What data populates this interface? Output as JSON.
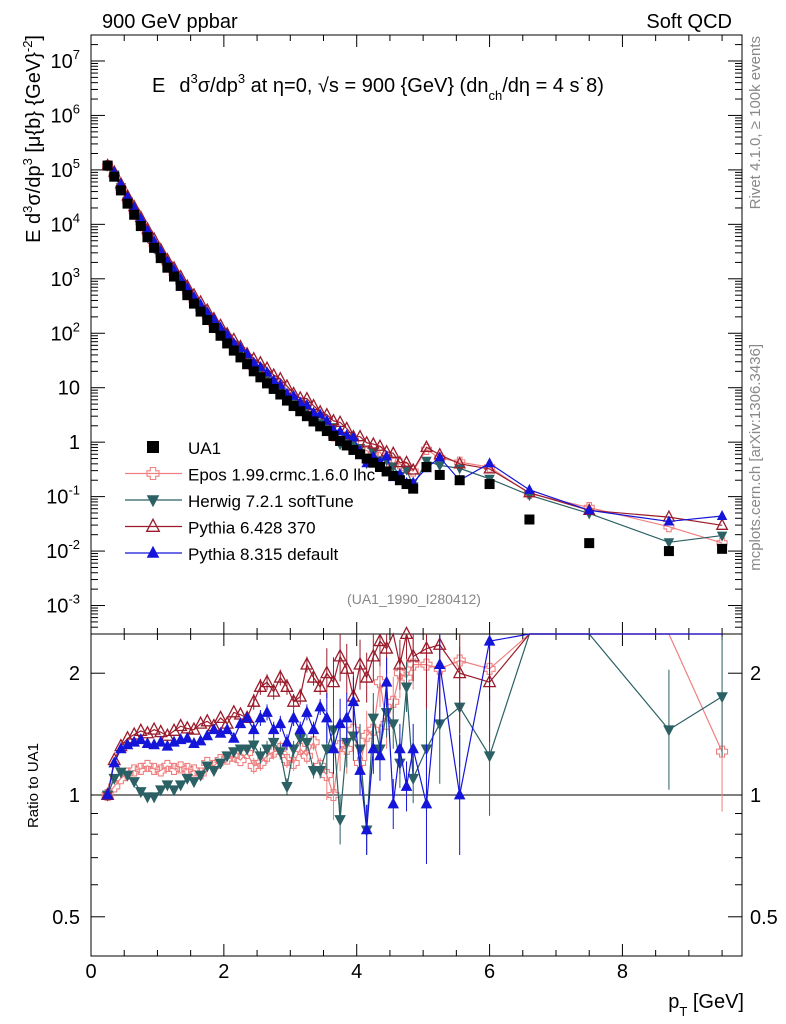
{
  "header": {
    "left": "900 GeV ppbar",
    "right": "Soft QCD"
  },
  "side": {
    "rivet": "Rivet 4.1.0, ≥ 100k events",
    "mcplots": "mcplots.cern.ch [arXiv:1306.3436]"
  },
  "chart_data": {
    "type": "scatter",
    "title_parts": {
      "E": "E",
      "d": "d",
      "sup3a": "3",
      "sigma": "σ/dp",
      "sup3b": "3",
      "at": " at η=0, √s = 900 {GeV} (dn",
      "ch": "ch",
      "deta": "/dη = 4 s",
      "dot": "˙",
      "eight": "8)"
    },
    "dataset_label": "(UA1_1990_I280412)",
    "ylabel_parts": {
      "a": "E d",
      "b": "3",
      "c": "σ/dp",
      "d": "3",
      "e": " [μ{b} {GeV}",
      "f": "-2",
      "g": "]"
    },
    "ratio_ylabel": "Ratio to UA1",
    "xlabel_parts": {
      "p": "p",
      "T": "T",
      "unit": " [GeV]"
    },
    "xlim": [
      0,
      9.8
    ],
    "ylim": [
      0.0003,
      30000000
    ],
    "ratio_ylim": [
      0.4,
      2.5
    ],
    "xticks": [
      "0",
      "2",
      "4",
      "6",
      "8"
    ],
    "xtick_values": [
      0,
      2,
      4,
      6,
      8
    ],
    "yticks": [
      {
        "v": 0.001,
        "m": "10",
        "e": "-3"
      },
      {
        "v": 0.01,
        "m": "10",
        "e": "-2"
      },
      {
        "v": 0.1,
        "m": "10",
        "e": "-1"
      },
      {
        "v": 1,
        "m": "1",
        "e": ""
      },
      {
        "v": 10,
        "m": "10",
        "e": ""
      },
      {
        "v": 100,
        "m": "10",
        "e": "2"
      },
      {
        "v": 1000,
        "m": "10",
        "e": "3"
      },
      {
        "v": 10000,
        "m": "10",
        "e": "4"
      },
      {
        "v": 100000,
        "m": "10",
        "e": "5"
      },
      {
        "v": 1000000,
        "m": "10",
        "e": "6"
      },
      {
        "v": 10000000,
        "m": "10",
        "e": "7"
      }
    ],
    "ratio_yticks": [
      {
        "v": 0.5,
        "l": "0.5"
      },
      {
        "v": 1,
        "l": "1"
      },
      {
        "v": 2,
        "l": "2"
      }
    ],
    "series": [
      {
        "name": "UA1",
        "color": "#000000",
        "marker": "square",
        "x": [
          0.25,
          0.35,
          0.45,
          0.55,
          0.65,
          0.75,
          0.85,
          0.95,
          1.05,
          1.15,
          1.25,
          1.35,
          1.45,
          1.55,
          1.65,
          1.75,
          1.85,
          1.95,
          2.05,
          2.15,
          2.25,
          2.35,
          2.45,
          2.55,
          2.65,
          2.75,
          2.85,
          2.95,
          3.05,
          3.15,
          3.25,
          3.35,
          3.45,
          3.55,
          3.65,
          3.75,
          3.85,
          3.95,
          4.05,
          4.15,
          4.25,
          4.35,
          4.45,
          4.55,
          4.65,
          4.75,
          4.85,
          5.05,
          5.25,
          5.55,
          6.0,
          6.6,
          7.5,
          8.7,
          9.5
        ],
        "y": [
          120000,
          75000,
          42000,
          24000,
          15000,
          9300,
          5800,
          3700,
          2400,
          1600,
          1100,
          740,
          500,
          350,
          250,
          175,
          125,
          90,
          65,
          48,
          36,
          27,
          20,
          15.5,
          12,
          9.5,
          7.5,
          5.8,
          4.6,
          3.7,
          3.0,
          2.4,
          1.95,
          1.6,
          1.3,
          1.05,
          0.87,
          0.72,
          0.6,
          0.5,
          0.42,
          0.35,
          0.29,
          0.24,
          0.2,
          0.17,
          0.14,
          0.35,
          0.25,
          0.2,
          0.17,
          0.038,
          0.014,
          0.01,
          0.011
        ]
      },
      {
        "name": "Epos 1.99.crmc.1.6.0 lhc",
        "color": "#f08080",
        "marker": "cross",
        "ratio_x": [
          0.25,
          0.35,
          0.45,
          0.55,
          0.65,
          0.75,
          0.85,
          0.95,
          1.05,
          1.15,
          1.25,
          1.35,
          1.45,
          1.55,
          1.65,
          1.75,
          1.85,
          1.95,
          2.05,
          2.15,
          2.25,
          2.35,
          2.45,
          2.55,
          2.65,
          2.75,
          2.85,
          2.95,
          3.05,
          3.15,
          3.25,
          3.35,
          3.45,
          3.55,
          3.65,
          3.75,
          3.85,
          3.95,
          4.05,
          4.15,
          4.25,
          4.35,
          4.45,
          4.55,
          4.65,
          4.75,
          4.85,
          5.05,
          5.25,
          5.55,
          6.0,
          6.6,
          7.5,
          8.7,
          9.5
        ],
        "ratio": [
          1.0,
          1.05,
          1.1,
          1.13,
          1.15,
          1.16,
          1.18,
          1.16,
          1.15,
          1.18,
          1.16,
          1.17,
          1.16,
          1.15,
          1.13,
          1.2,
          1.18,
          1.22,
          1.23,
          1.25,
          1.22,
          1.27,
          1.18,
          1.2,
          1.25,
          1.28,
          1.3,
          1.22,
          1.2,
          1.3,
          1.25,
          1.35,
          1.18,
          1.12,
          1.0,
          1.32,
          1.3,
          1.45,
          1.2,
          1.4,
          1.45,
          1.9,
          1.5,
          1.7,
          2.0,
          1.95,
          2.1,
          2.1,
          2.05,
          2.15,
          2.05,
          3.0,
          4.5,
          2.8,
          1.28
        ]
      },
      {
        "name": "Herwig 7.2.1 softTune",
        "color": "#2b6064",
        "marker": "tri_down",
        "ratio_x": [
          0.25,
          0.35,
          0.45,
          0.55,
          0.65,
          0.75,
          0.85,
          0.95,
          1.05,
          1.15,
          1.25,
          1.35,
          1.45,
          1.55,
          1.65,
          1.75,
          1.85,
          1.95,
          2.05,
          2.15,
          2.25,
          2.35,
          2.45,
          2.55,
          2.65,
          2.75,
          2.85,
          2.95,
          3.05,
          3.15,
          3.25,
          3.35,
          3.45,
          3.55,
          3.65,
          3.75,
          3.85,
          3.95,
          4.05,
          4.15,
          4.25,
          4.35,
          4.45,
          4.55,
          4.65,
          4.75,
          4.85,
          5.05,
          5.25,
          5.55,
          6.0,
          6.6,
          7.5,
          8.7,
          9.5
        ],
        "ratio": [
          1.0,
          1.1,
          1.14,
          1.12,
          1.08,
          1.02,
          0.99,
          0.99,
          1.03,
          1.06,
          1.03,
          1.06,
          1.1,
          1.08,
          1.12,
          1.18,
          1.15,
          1.2,
          1.25,
          1.28,
          1.3,
          1.3,
          1.33,
          1.25,
          1.3,
          1.35,
          1.28,
          1.05,
          1.3,
          1.38,
          1.35,
          1.15,
          1.15,
          1.3,
          1.45,
          0.87,
          1.35,
          1.4,
          1.3,
          0.82,
          1.55,
          1.3,
          1.6,
          1.5,
          1.2,
          1.85,
          1.1,
          1.3,
          1.5,
          1.65,
          1.25,
          2.8,
          3.5,
          1.45,
          1.75
        ]
      },
      {
        "name": "Pythia 6.428 370",
        "color": "#9b1b2b",
        "marker": "tri_up_open",
        "ratio_x": [
          0.25,
          0.35,
          0.45,
          0.55,
          0.65,
          0.75,
          0.85,
          0.95,
          1.05,
          1.15,
          1.25,
          1.35,
          1.45,
          1.55,
          1.65,
          1.75,
          1.85,
          1.95,
          2.05,
          2.15,
          2.25,
          2.35,
          2.45,
          2.55,
          2.65,
          2.75,
          2.85,
          2.95,
          3.05,
          3.15,
          3.25,
          3.35,
          3.45,
          3.55,
          3.65,
          3.75,
          3.85,
          3.95,
          4.05,
          4.15,
          4.25,
          4.35,
          4.45,
          4.55,
          4.65,
          4.75,
          4.85,
          5.05,
          5.25,
          5.55,
          6.0,
          6.6,
          7.5,
          8.7,
          9.5
        ],
        "ratio": [
          1.0,
          1.22,
          1.32,
          1.38,
          1.41,
          1.44,
          1.42,
          1.45,
          1.43,
          1.4,
          1.44,
          1.48,
          1.46,
          1.45,
          1.5,
          1.52,
          1.48,
          1.55,
          1.5,
          1.6,
          1.58,
          1.55,
          1.7,
          1.85,
          1.9,
          1.8,
          1.95,
          1.85,
          1.7,
          1.75,
          2.1,
          1.95,
          1.85,
          2.0,
          1.9,
          2.2,
          2.05,
          1.75,
          2.1,
          1.95,
          2.2,
          2.4,
          2.3,
          2.6,
          2.1,
          2.5,
          2.2,
          2.3,
          2.35,
          2.0,
          1.9,
          3.1,
          4.0,
          4.2,
          2.7
        ]
      },
      {
        "name": "Pythia 8.315 default",
        "color": "#1515d9",
        "marker": "tri_up",
        "ratio_x": [
          0.25,
          0.35,
          0.45,
          0.55,
          0.65,
          0.75,
          0.85,
          0.95,
          1.05,
          1.15,
          1.25,
          1.35,
          1.45,
          1.55,
          1.65,
          1.75,
          1.85,
          1.95,
          2.05,
          2.15,
          2.25,
          2.35,
          2.45,
          2.55,
          2.65,
          2.75,
          2.85,
          2.95,
          3.05,
          3.15,
          3.25,
          3.35,
          3.45,
          3.55,
          3.65,
          3.75,
          3.85,
          3.95,
          4.05,
          4.15,
          4.25,
          4.35,
          4.45,
          4.55,
          4.65,
          4.75,
          4.85,
          5.05,
          5.25,
          5.55,
          6.0,
          6.6,
          7.5,
          8.7,
          9.5
        ],
        "ratio": [
          1.0,
          1.2,
          1.3,
          1.33,
          1.35,
          1.37,
          1.34,
          1.33,
          1.35,
          1.32,
          1.35,
          1.37,
          1.38,
          1.34,
          1.36,
          1.4,
          1.45,
          1.42,
          1.45,
          1.38,
          1.5,
          1.55,
          1.45,
          1.55,
          1.6,
          1.45,
          1.5,
          1.35,
          1.55,
          1.45,
          1.6,
          1.45,
          1.65,
          1.55,
          1.3,
          1.5,
          1.55,
          1.7,
          1.15,
          0.82,
          1.3,
          1.25,
          1.9,
          0.95,
          1.3,
          1.05,
          1.3,
          0.95,
          2.1,
          1.0,
          2.4,
          3.5,
          4.0,
          3.5,
          4.0
        ]
      }
    ],
    "legend": [
      "UA1",
      "Epos 1.99.crmc.1.6.0 lhc",
      "Herwig 7.2.1 softTune",
      "Pythia 6.428 370",
      "Pythia 8.315 default"
    ]
  }
}
